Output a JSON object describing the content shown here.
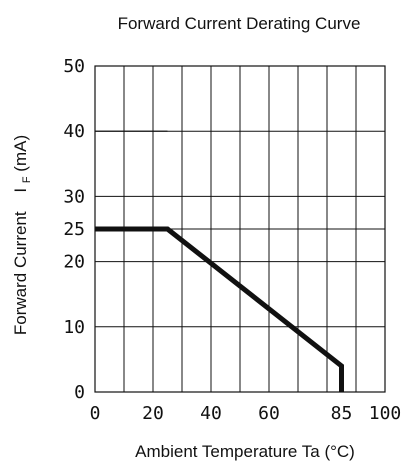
{
  "chart_data": {
    "type": "line",
    "title": "Forward Current Derating Curve",
    "xlabel": "Ambient Temperature Ta (°C)",
    "ylabel_main": "Forward Current",
    "ylabel_symbol": "I",
    "ylabel_subscript": "F",
    "ylabel_unit": "(mA)",
    "xlim": [
      0,
      100
    ],
    "ylim": [
      0,
      50
    ],
    "grid": true,
    "x_tick_labels": [
      {
        "value": 0,
        "label": "0"
      },
      {
        "value": 20,
        "label": "20"
      },
      {
        "value": 40,
        "label": "40"
      },
      {
        "value": 60,
        "label": "60"
      },
      {
        "value": 85,
        "label": "85"
      },
      {
        "value": 100,
        "label": "100"
      }
    ],
    "x_gridlines": [
      0,
      10,
      20,
      30,
      40,
      50,
      60,
      70,
      80,
      90,
      100
    ],
    "y_tick_labels": [
      {
        "value": 0,
        "label": "0"
      },
      {
        "value": 10,
        "label": "10"
      },
      {
        "value": 20,
        "label": "20"
      },
      {
        "value": 25,
        "label": "25"
      },
      {
        "value": 30,
        "label": "30"
      },
      {
        "value": 40,
        "label": "40"
      },
      {
        "value": 50,
        "label": "50"
      }
    ],
    "y_gridlines": [
      0,
      10,
      20,
      25,
      30,
      40,
      50
    ],
    "series": [
      {
        "x": [
          0,
          25,
          85,
          85
        ],
        "y": [
          25,
          25,
          4,
          0
        ],
        "color": "#111111"
      }
    ],
    "annotations": [
      {
        "type": "segment",
        "x": [
          0,
          25
        ],
        "y": [
          40,
          40
        ]
      }
    ]
  }
}
